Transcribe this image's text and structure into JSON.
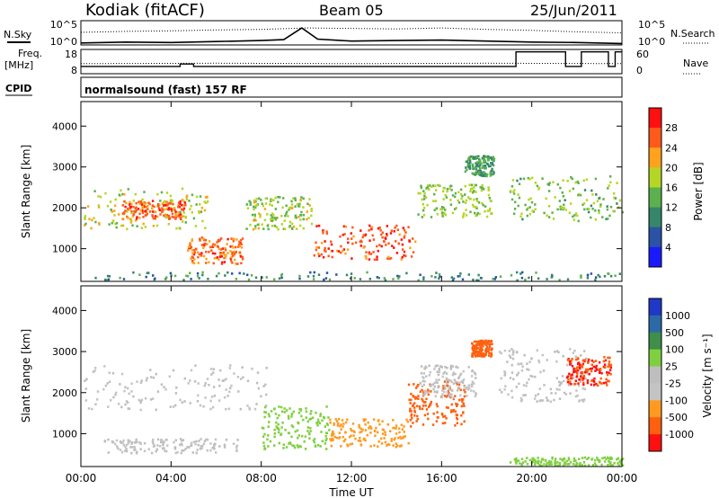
{
  "header": {
    "station": "Kodiak (fitACF)",
    "beam": "Beam 05",
    "date": "25/Jun/2011"
  },
  "chart_data": [
    {
      "type": "line",
      "panel": "noise",
      "left_label": "N.Sky",
      "right_label": "N.Search",
      "yticks_left": [
        "10^5",
        "10^0"
      ],
      "yticks_right": [
        "10^5",
        "10^0"
      ],
      "series": [
        {
          "name": "N.Sky",
          "style": "solid",
          "x_hours": [
            0,
            2,
            4,
            6,
            8,
            9,
            9.8,
            10.5,
            12,
            14,
            16,
            18,
            20,
            22,
            24
          ],
          "y_log": [
            0.4,
            0.6,
            0.5,
            0.7,
            0.9,
            1.1,
            3.5,
            1.2,
            0.8,
            0.9,
            1.0,
            0.8,
            0.6,
            0.5,
            0.3
          ]
        },
        {
          "name": "N.Search",
          "style": "dotted",
          "x_hours": [
            0,
            2,
            4,
            6,
            8,
            10,
            12,
            14,
            16,
            18,
            20,
            22,
            24
          ],
          "y_log": [
            2.6,
            2.8,
            2.9,
            3.1,
            3.2,
            3.5,
            3.4,
            3.3,
            3.5,
            3.2,
            3.0,
            2.7,
            2.5
          ]
        }
      ]
    },
    {
      "type": "line",
      "panel": "frequency",
      "left_label": "Freq. [MHz]",
      "right_label": "Nave",
      "yticks_left": [
        "18",
        "8"
      ],
      "yticks_right": [
        "60",
        "0"
      ],
      "series": [
        {
          "name": "Freq",
          "style": "solid",
          "x_hours": [
            0,
            4.4,
            4.4,
            5.0,
            5.0,
            19.3,
            19.3,
            21.5,
            21.5,
            22.2,
            22.2,
            23.4,
            23.4,
            23.7,
            23.7,
            24
          ],
          "y": [
            11,
            11,
            12,
            12,
            11,
            11,
            17,
            17,
            11,
            11,
            17,
            17,
            11,
            11,
            17,
            17
          ]
        },
        {
          "name": "Nave",
          "style": "dotted",
          "x_hours": [
            0,
            6,
            12,
            18,
            24
          ],
          "y": [
            25,
            26,
            25,
            26,
            25
          ]
        }
      ]
    },
    {
      "type": "heatmap",
      "panel": "power",
      "cpid_label": "CPID",
      "program": "normalsound (fast) 157 RF",
      "ylabel": "Slant Range [km]",
      "yticks": [
        "1000",
        "2000",
        "3000",
        "4000"
      ],
      "ylim": [
        200,
        4600
      ],
      "colorbar_label": "Power [dB]",
      "colorbar_ticks": [
        "4",
        "8",
        "12",
        "16",
        "20",
        "24",
        "28"
      ],
      "colorbar_colors": [
        "#1a1aff",
        "#2a52a6",
        "#35866a",
        "#5cb14f",
        "#b6d626",
        "#ffa21c",
        "#ff5a1c",
        "#ff1010"
      ],
      "regions": [
        {
          "t": [
            0.1,
            5.6
          ],
          "r": [
            1500,
            2500
          ],
          "dB": 18
        },
        {
          "t": [
            1.8,
            4.6
          ],
          "r": [
            1750,
            2200
          ],
          "dB": 26
        },
        {
          "t": [
            4.7,
            7.2
          ],
          "r": [
            650,
            1300
          ],
          "dB": 25
        },
        {
          "t": [
            7.3,
            10.2
          ],
          "r": [
            1500,
            2300
          ],
          "dB": 17
        },
        {
          "t": [
            10.3,
            14.8
          ],
          "r": [
            750,
            1600
          ],
          "dB": 27
        },
        {
          "t": [
            14.9,
            18.2
          ],
          "r": [
            1800,
            2600
          ],
          "dB": 16
        },
        {
          "t": [
            17.0,
            18.3
          ],
          "r": [
            2800,
            3300
          ],
          "dB": 12
        },
        {
          "t": [
            19.0,
            24
          ],
          "r": [
            1700,
            2800
          ],
          "dB": 15
        },
        {
          "t": [
            0,
            24
          ],
          "r": [
            250,
            450
          ],
          "dB": 10
        }
      ]
    },
    {
      "type": "heatmap",
      "panel": "velocity",
      "xlabel": "Time UT",
      "xticks": [
        "00:00",
        "04:00",
        "08:00",
        "12:00",
        "16:00",
        "20:00",
        "00:00"
      ],
      "ylabel": "Slant Range [km]",
      "yticks": [
        "1000",
        "2000",
        "3000",
        "4000"
      ],
      "ylim": [
        200,
        4600
      ],
      "colorbar_label": "Velocity [m s⁻¹]",
      "colorbar_ticks": [
        "1000",
        "500",
        "100",
        "25",
        "-25",
        "-100",
        "-500",
        "-1000"
      ],
      "colorbar_colors": [
        "#2038c8",
        "#2c6aa6",
        "#3f8f4a",
        "#7fd040",
        "#bebebe",
        "#c4c4c4",
        "#ff9a20",
        "#ff6010",
        "#ff1010"
      ],
      "regions": [
        {
          "t": [
            0.1,
            8.2
          ],
          "r": [
            1600,
            2700
          ],
          "v": 0
        },
        {
          "t": [
            8.0,
            11.0
          ],
          "r": [
            650,
            1700
          ],
          "v": 60
        },
        {
          "t": [
            11.0,
            14.5
          ],
          "r": [
            700,
            1400
          ],
          "v": -80
        },
        {
          "t": [
            14.5,
            17.0
          ],
          "r": [
            1200,
            2300
          ],
          "v": -300
        },
        {
          "t": [
            15.0,
            17.5
          ],
          "r": [
            1900,
            2700
          ],
          "v": 0
        },
        {
          "t": [
            18.5,
            22.5
          ],
          "r": [
            1800,
            3100
          ],
          "v": 0
        },
        {
          "t": [
            21.5,
            23.5
          ],
          "r": [
            2200,
            2900
          ],
          "v": -500
        },
        {
          "t": [
            17.3,
            18.2
          ],
          "r": [
            2900,
            3300
          ],
          "v": -300
        },
        {
          "t": [
            1.0,
            7.0
          ],
          "r": [
            550,
            900
          ],
          "v": 0
        },
        {
          "t": [
            19.0,
            24
          ],
          "r": [
            250,
            450
          ],
          "v": 80
        }
      ]
    }
  ]
}
